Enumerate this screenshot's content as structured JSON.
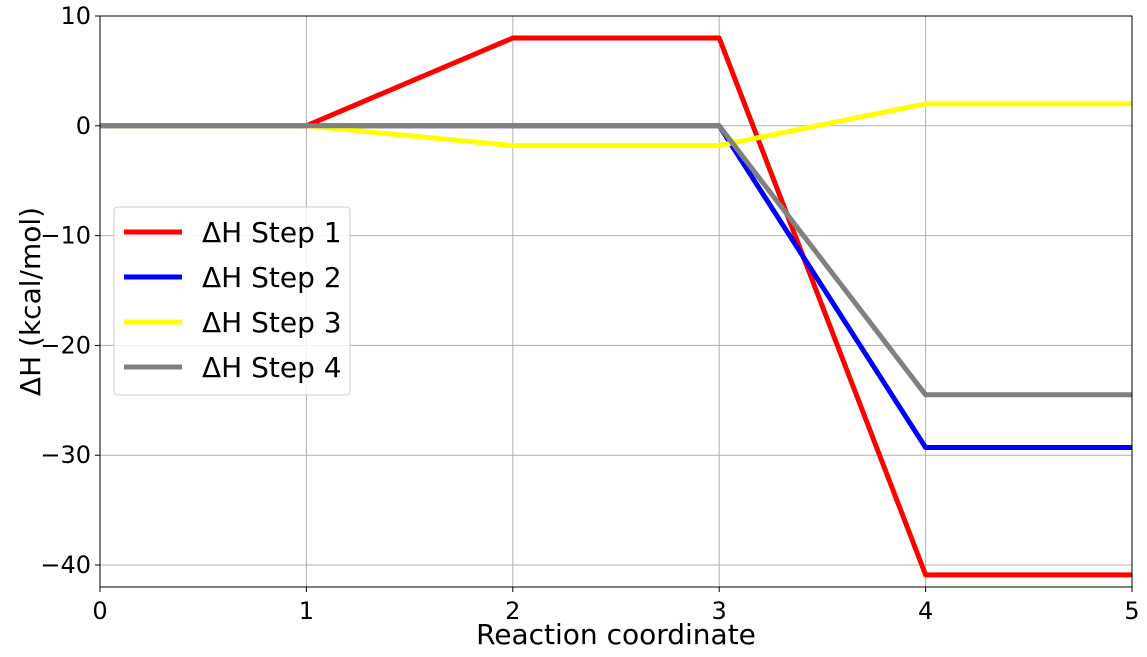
{
  "chart_data": {
    "type": "line",
    "title": "",
    "xlabel": "Reaction coordinate",
    "ylabel": "ΔH (kcal/mol)",
    "xlim": [
      0,
      5
    ],
    "ylim": [
      -42,
      10
    ],
    "xticks": [
      0,
      1,
      2,
      3,
      4,
      5
    ],
    "yticks": [
      10,
      0,
      -10,
      -20,
      -30,
      -40
    ],
    "ytick_labels": [
      "10",
      "0",
      "−10",
      "−20",
      "−30",
      "−40"
    ],
    "grid": true,
    "legend_position": "center-left",
    "x": [
      0,
      1,
      2,
      3,
      4,
      5
    ],
    "series": [
      {
        "name": "ΔH Step 1",
        "color": "#ff0000",
        "values": [
          0,
          0,
          8,
          8,
          -40.9,
          -40.9
        ]
      },
      {
        "name": "ΔH Step 2",
        "color": "#0000ff",
        "values": [
          0,
          0,
          0,
          0,
          -29.3,
          -29.3
        ]
      },
      {
        "name": "ΔH Step 3",
        "color": "#ffff00",
        "values": [
          0,
          0,
          -1.8,
          -1.8,
          2.0,
          2.0
        ]
      },
      {
        "name": "ΔH Step 4",
        "color": "#808080",
        "values": [
          0,
          0,
          0,
          0,
          -24.5,
          -24.5
        ]
      }
    ]
  }
}
